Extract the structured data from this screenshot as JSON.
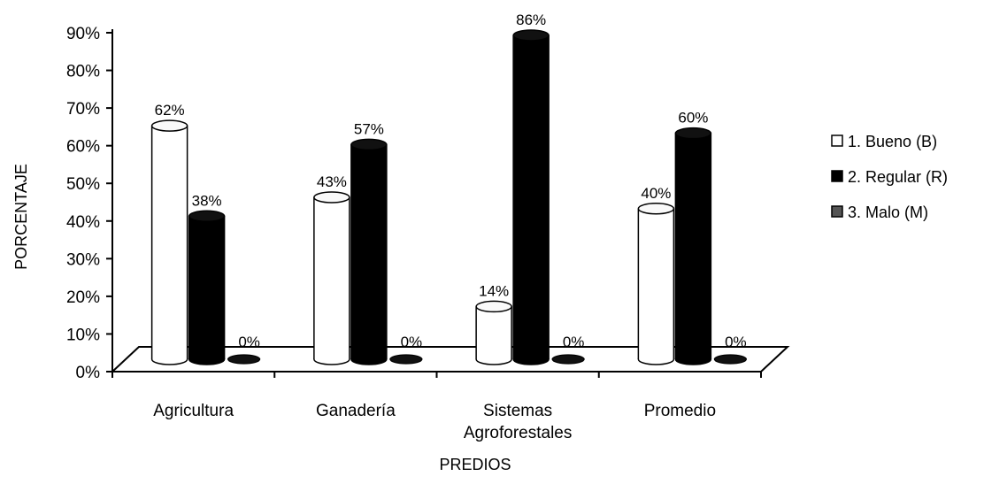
{
  "chart_data": {
    "type": "bar",
    "categories": [
      "Agricultura",
      "Ganadería",
      "Sistemas Agroforestales",
      "Promedio"
    ],
    "series": [
      {
        "name": "1. Bueno (B)",
        "values": [
          62,
          43,
          14,
          40
        ],
        "color": "#ffffff"
      },
      {
        "name": "2. Regular (R)",
        "values": [
          38,
          57,
          86,
          60
        ],
        "color": "#000000"
      },
      {
        "name": "3. Malo (M)",
        "values": [
          0,
          0,
          0,
          0
        ],
        "color": "#555555"
      }
    ],
    "data_labels": [
      [
        "62%",
        "43%",
        "14%",
        "40%"
      ],
      [
        "38%",
        "57%",
        "86%",
        "60%"
      ],
      [
        "0%",
        "0%",
        "0%",
        "0%"
      ]
    ],
    "yticks": [
      "0%",
      "10%",
      "20%",
      "30%",
      "40%",
      "50%",
      "60%",
      "70%",
      "80%",
      "90%"
    ],
    "ylim": [
      0,
      90
    ],
    "xlabel": "PREDIOS",
    "ylabel": "PORCENTAJE",
    "legend_position": "right",
    "style": "3d-cylinder"
  }
}
